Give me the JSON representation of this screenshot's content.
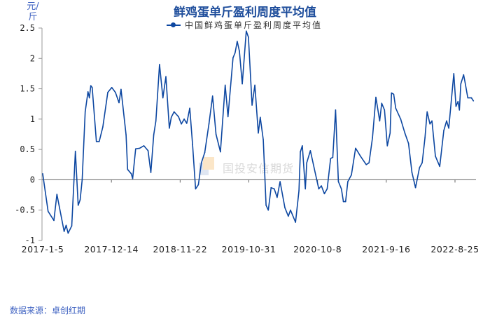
{
  "chart_data": {
    "type": "line",
    "title": "鲜鸡蛋单斤盈利周度平均值",
    "ylabel": "元/斤",
    "xlabel": "",
    "ylim": [
      -1,
      2.5
    ],
    "yticks": [
      "2.5",
      "2",
      "1.5",
      "1",
      "0.5",
      "0",
      "-0.5",
      "-1"
    ],
    "xticks": [
      "2017-1-5",
      "2017-12-14",
      "2018-11-22",
      "2019-10-31",
      "2020-10-8",
      "2021-9-16",
      "2022-8-25"
    ],
    "legend_position": "top-center",
    "grid": false,
    "series": [
      {
        "name": "中国鲜鸡蛋单斤盈利周度平均值",
        "color": "#0d47a1",
        "points": [
          [
            "2017-01-05",
            0.1
          ],
          [
            "2017-02-01",
            -0.52
          ],
          [
            "2017-03-02",
            -0.67
          ],
          [
            "2017-03-17",
            -0.24
          ],
          [
            "2017-04-22",
            -0.85
          ],
          [
            "2017-05-02",
            -0.75
          ],
          [
            "2017-05-12",
            -0.88
          ],
          [
            "2017-05-30",
            -0.76
          ],
          [
            "2017-06-17",
            0.47
          ],
          [
            "2017-07-01",
            -0.42
          ],
          [
            "2017-07-11",
            -0.33
          ],
          [
            "2017-07-21",
            0.0
          ],
          [
            "2017-08-05",
            1.12
          ],
          [
            "2017-08-19",
            1.45
          ],
          [
            "2017-08-26",
            1.35
          ],
          [
            "2017-09-02",
            1.55
          ],
          [
            "2017-09-09",
            1.52
          ],
          [
            "2017-09-30",
            0.63
          ],
          [
            "2017-10-14",
            0.63
          ],
          [
            "2017-11-01",
            0.87
          ],
          [
            "2017-11-26",
            1.44
          ],
          [
            "2017-12-16",
            1.52
          ],
          [
            "2018-01-03",
            1.44
          ],
          [
            "2018-01-21",
            1.27
          ],
          [
            "2018-01-31",
            1.49
          ],
          [
            "2018-02-25",
            0.74
          ],
          [
            "2018-03-05",
            0.17
          ],
          [
            "2018-03-23",
            0.1
          ],
          [
            "2018-03-30",
            0.02
          ],
          [
            "2018-04-14",
            0.51
          ],
          [
            "2018-05-04",
            0.52
          ],
          [
            "2018-05-25",
            0.56
          ],
          [
            "2018-06-15",
            0.48
          ],
          [
            "2018-06-29",
            0.12
          ],
          [
            "2018-07-13",
            0.74
          ],
          [
            "2018-07-24",
            0.97
          ],
          [
            "2018-08-11",
            1.9
          ],
          [
            "2018-08-28",
            1.35
          ],
          [
            "2018-09-12",
            1.7
          ],
          [
            "2018-09-29",
            0.85
          ],
          [
            "2018-10-09",
            1.03
          ],
          [
            "2018-10-23",
            1.12
          ],
          [
            "2018-11-14",
            1.04
          ],
          [
            "2018-11-28",
            0.92
          ],
          [
            "2018-12-12",
            1.0
          ],
          [
            "2018-12-25",
            0.93
          ],
          [
            "2019-01-09",
            1.18
          ],
          [
            "2019-01-23",
            0.58
          ],
          [
            "2019-02-07",
            -0.15
          ],
          [
            "2019-02-21",
            -0.08
          ],
          [
            "2019-03-08",
            0.28
          ],
          [
            "2019-03-25",
            0.45
          ],
          [
            "2019-04-15",
            0.92
          ],
          [
            "2019-05-03",
            1.38
          ],
          [
            "2019-05-20",
            0.75
          ],
          [
            "2019-06-11",
            0.46
          ],
          [
            "2019-07-05",
            1.56
          ],
          [
            "2019-07-19",
            1.04
          ],
          [
            "2019-08-13",
            2.01
          ],
          [
            "2019-08-23",
            2.09
          ],
          [
            "2019-09-03",
            2.28
          ],
          [
            "2019-09-14",
            2.12
          ],
          [
            "2019-09-28",
            1.58
          ],
          [
            "2019-10-18",
            2.45
          ],
          [
            "2019-10-29",
            2.35
          ],
          [
            "2019-11-16",
            1.23
          ],
          [
            "2019-11-30",
            1.56
          ],
          [
            "2019-12-17",
            0.77
          ],
          [
            "2019-12-27",
            1.03
          ],
          [
            "2020-01-11",
            0.66
          ],
          [
            "2020-01-25",
            -0.42
          ],
          [
            "2020-02-05",
            -0.5
          ],
          [
            "2020-02-19",
            -0.13
          ],
          [
            "2020-03-06",
            -0.15
          ],
          [
            "2020-03-20",
            -0.29
          ],
          [
            "2020-04-04",
            -0.03
          ],
          [
            "2020-04-28",
            -0.46
          ],
          [
            "2020-05-15",
            -0.6
          ],
          [
            "2020-05-26",
            -0.5
          ],
          [
            "2020-06-20",
            -0.7
          ],
          [
            "2020-07-07",
            -0.18
          ],
          [
            "2020-07-14",
            0.46
          ],
          [
            "2020-07-24",
            0.56
          ],
          [
            "2020-08-08",
            -0.15
          ],
          [
            "2020-08-15",
            0.28
          ],
          [
            "2020-09-02",
            0.48
          ],
          [
            "2020-09-26",
            0.12
          ],
          [
            "2020-10-14",
            -0.15
          ],
          [
            "2020-10-27",
            -0.1
          ],
          [
            "2020-11-11",
            -0.23
          ],
          [
            "2020-11-25",
            -0.15
          ],
          [
            "2020-12-12",
            0.35
          ],
          [
            "2020-12-23",
            0.37
          ],
          [
            "2021-01-06",
            1.15
          ],
          [
            "2021-01-20",
            -0.03
          ],
          [
            "2021-02-04",
            -0.15
          ],
          [
            "2021-02-14",
            -0.36
          ],
          [
            "2021-02-25",
            -0.36
          ],
          [
            "2021-03-08",
            -0.03
          ],
          [
            "2021-03-26",
            0.08
          ],
          [
            "2021-04-16",
            0.52
          ],
          [
            "2021-05-10",
            0.39
          ],
          [
            "2021-06-08",
            0.25
          ],
          [
            "2021-06-22",
            0.28
          ],
          [
            "2021-07-09",
            0.69
          ],
          [
            "2021-07-26",
            1.36
          ],
          [
            "2021-08-14",
            0.97
          ],
          [
            "2021-08-24",
            1.26
          ],
          [
            "2021-09-07",
            1.15
          ],
          [
            "2021-09-21",
            0.56
          ],
          [
            "2021-10-05",
            0.77
          ],
          [
            "2021-10-12",
            1.43
          ],
          [
            "2021-10-23",
            1.41
          ],
          [
            "2021-11-02",
            1.18
          ],
          [
            "2021-11-27",
            1.0
          ],
          [
            "2021-12-18",
            0.77
          ],
          [
            "2022-01-05",
            0.6
          ],
          [
            "2022-01-22",
            0.12
          ],
          [
            "2022-02-09",
            -0.13
          ],
          [
            "2022-03-01",
            0.2
          ],
          [
            "2022-03-14",
            0.28
          ],
          [
            "2022-03-28",
            0.69
          ],
          [
            "2022-04-08",
            1.12
          ],
          [
            "2022-04-22",
            0.92
          ],
          [
            "2022-05-02",
            0.97
          ],
          [
            "2022-05-19",
            0.39
          ],
          [
            "2022-06-10",
            0.22
          ],
          [
            "2022-06-30",
            0.81
          ],
          [
            "2022-07-14",
            0.97
          ],
          [
            "2022-07-25",
            0.85
          ],
          [
            "2022-08-19",
            1.75
          ],
          [
            "2022-08-30",
            1.21
          ],
          [
            "2022-09-09",
            1.29
          ],
          [
            "2022-09-16",
            1.15
          ],
          [
            "2022-09-23",
            1.58
          ],
          [
            "2022-10-07",
            1.73
          ],
          [
            "2022-10-14",
            1.61
          ],
          [
            "2022-10-28",
            1.35
          ],
          [
            "2022-11-15",
            1.35
          ],
          [
            "2022-11-25",
            1.3
          ]
        ]
      }
    ]
  },
  "watermark": "国投安信期货",
  "source": "数据来源：卓创红期"
}
